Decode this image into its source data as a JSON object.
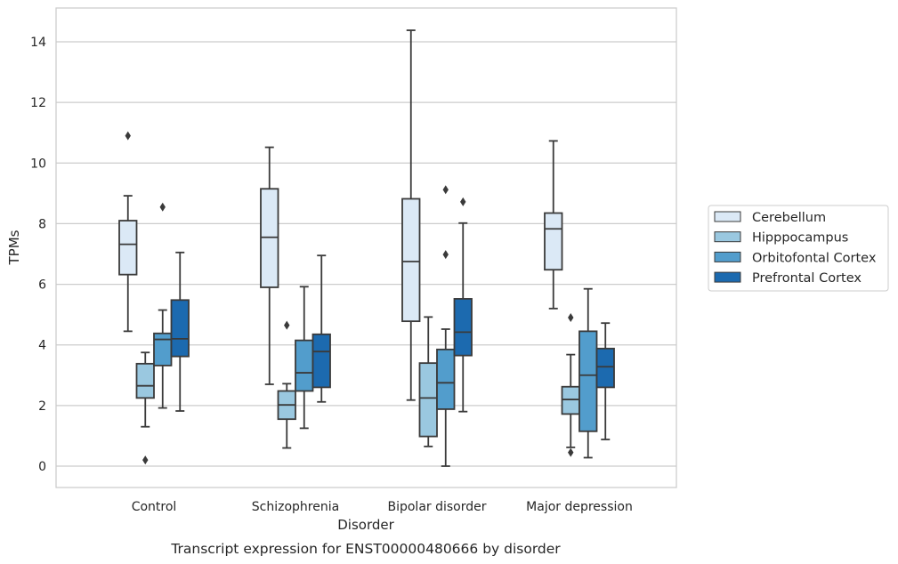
{
  "caption": "Transcript expression for ENST00000480666 by disorder",
  "chart_data": {
    "type": "boxplot",
    "title": "",
    "xlabel": "Disorder",
    "ylabel": "TPMs",
    "ylim": [
      -0.7,
      15.1
    ],
    "yticks": [
      0,
      2,
      4,
      6,
      8,
      10,
      12,
      14
    ],
    "grid": true,
    "legend_position": "right",
    "categories": [
      "Control",
      "Schizophrenia",
      "Bipolar disorder",
      "Major depression"
    ],
    "series": [
      {
        "name": "Cerebellum",
        "color": "#dbe9f6",
        "boxes": [
          {
            "whislo": 4.45,
            "q1": 6.32,
            "med": 7.32,
            "q3": 8.1,
            "whishi": 8.92,
            "fliers": [
              10.9
            ]
          },
          {
            "whislo": 2.7,
            "q1": 5.9,
            "med": 7.55,
            "q3": 9.15,
            "whishi": 10.52,
            "fliers": []
          },
          {
            "whislo": 2.18,
            "q1": 4.78,
            "med": 6.75,
            "q3": 8.82,
            "whishi": 14.38,
            "fliers": []
          },
          {
            "whislo": 5.2,
            "q1": 6.48,
            "med": 7.83,
            "q3": 8.35,
            "whishi": 10.73,
            "fliers": []
          }
        ]
      },
      {
        "name": "Hipppocampus",
        "color": "#9ac8e0",
        "boxes": [
          {
            "whislo": 1.3,
            "q1": 2.25,
            "med": 2.65,
            "q3": 3.38,
            "whishi": 3.75,
            "fliers": [
              0.2
            ]
          },
          {
            "whislo": 0.6,
            "q1": 1.55,
            "med": 2.02,
            "q3": 2.48,
            "whishi": 2.72,
            "fliers": [
              4.65
            ]
          },
          {
            "whislo": 0.65,
            "q1": 0.98,
            "med": 2.25,
            "q3": 3.4,
            "whishi": 4.92,
            "fliers": []
          },
          {
            "whislo": 0.62,
            "q1": 1.72,
            "med": 2.2,
            "q3": 2.62,
            "whishi": 3.68,
            "fliers": [
              0.45,
              4.9
            ]
          }
        ]
      },
      {
        "name": "Orbitofontal Cortex",
        "color": "#529dcc",
        "boxes": [
          {
            "whislo": 1.92,
            "q1": 3.32,
            "med": 4.18,
            "q3": 4.38,
            "whishi": 5.15,
            "fliers": [
              8.55
            ]
          },
          {
            "whislo": 1.25,
            "q1": 2.48,
            "med": 3.08,
            "q3": 4.15,
            "whishi": 5.92,
            "fliers": []
          },
          {
            "whislo": 0.0,
            "q1": 1.88,
            "med": 2.75,
            "q3": 3.85,
            "whishi": 4.52,
            "fliers": [
              6.98,
              9.12
            ]
          },
          {
            "whislo": 0.28,
            "q1": 1.15,
            "med": 3.0,
            "q3": 4.45,
            "whishi": 5.85,
            "fliers": []
          }
        ]
      },
      {
        "name": "Prefrontal Cortex",
        "color": "#1c6aaf",
        "boxes": [
          {
            "whislo": 1.82,
            "q1": 3.62,
            "med": 4.2,
            "q3": 5.48,
            "whishi": 7.05,
            "fliers": []
          },
          {
            "whislo": 2.12,
            "q1": 2.6,
            "med": 3.78,
            "q3": 4.35,
            "whishi": 6.95,
            "fliers": []
          },
          {
            "whislo": 1.8,
            "q1": 3.65,
            "med": 4.42,
            "q3": 5.52,
            "whishi": 8.02,
            "fliers": [
              8.72
            ]
          },
          {
            "whislo": 0.88,
            "q1": 2.6,
            "med": 3.28,
            "q3": 3.88,
            "whishi": 4.72,
            "fliers": []
          }
        ]
      }
    ]
  }
}
